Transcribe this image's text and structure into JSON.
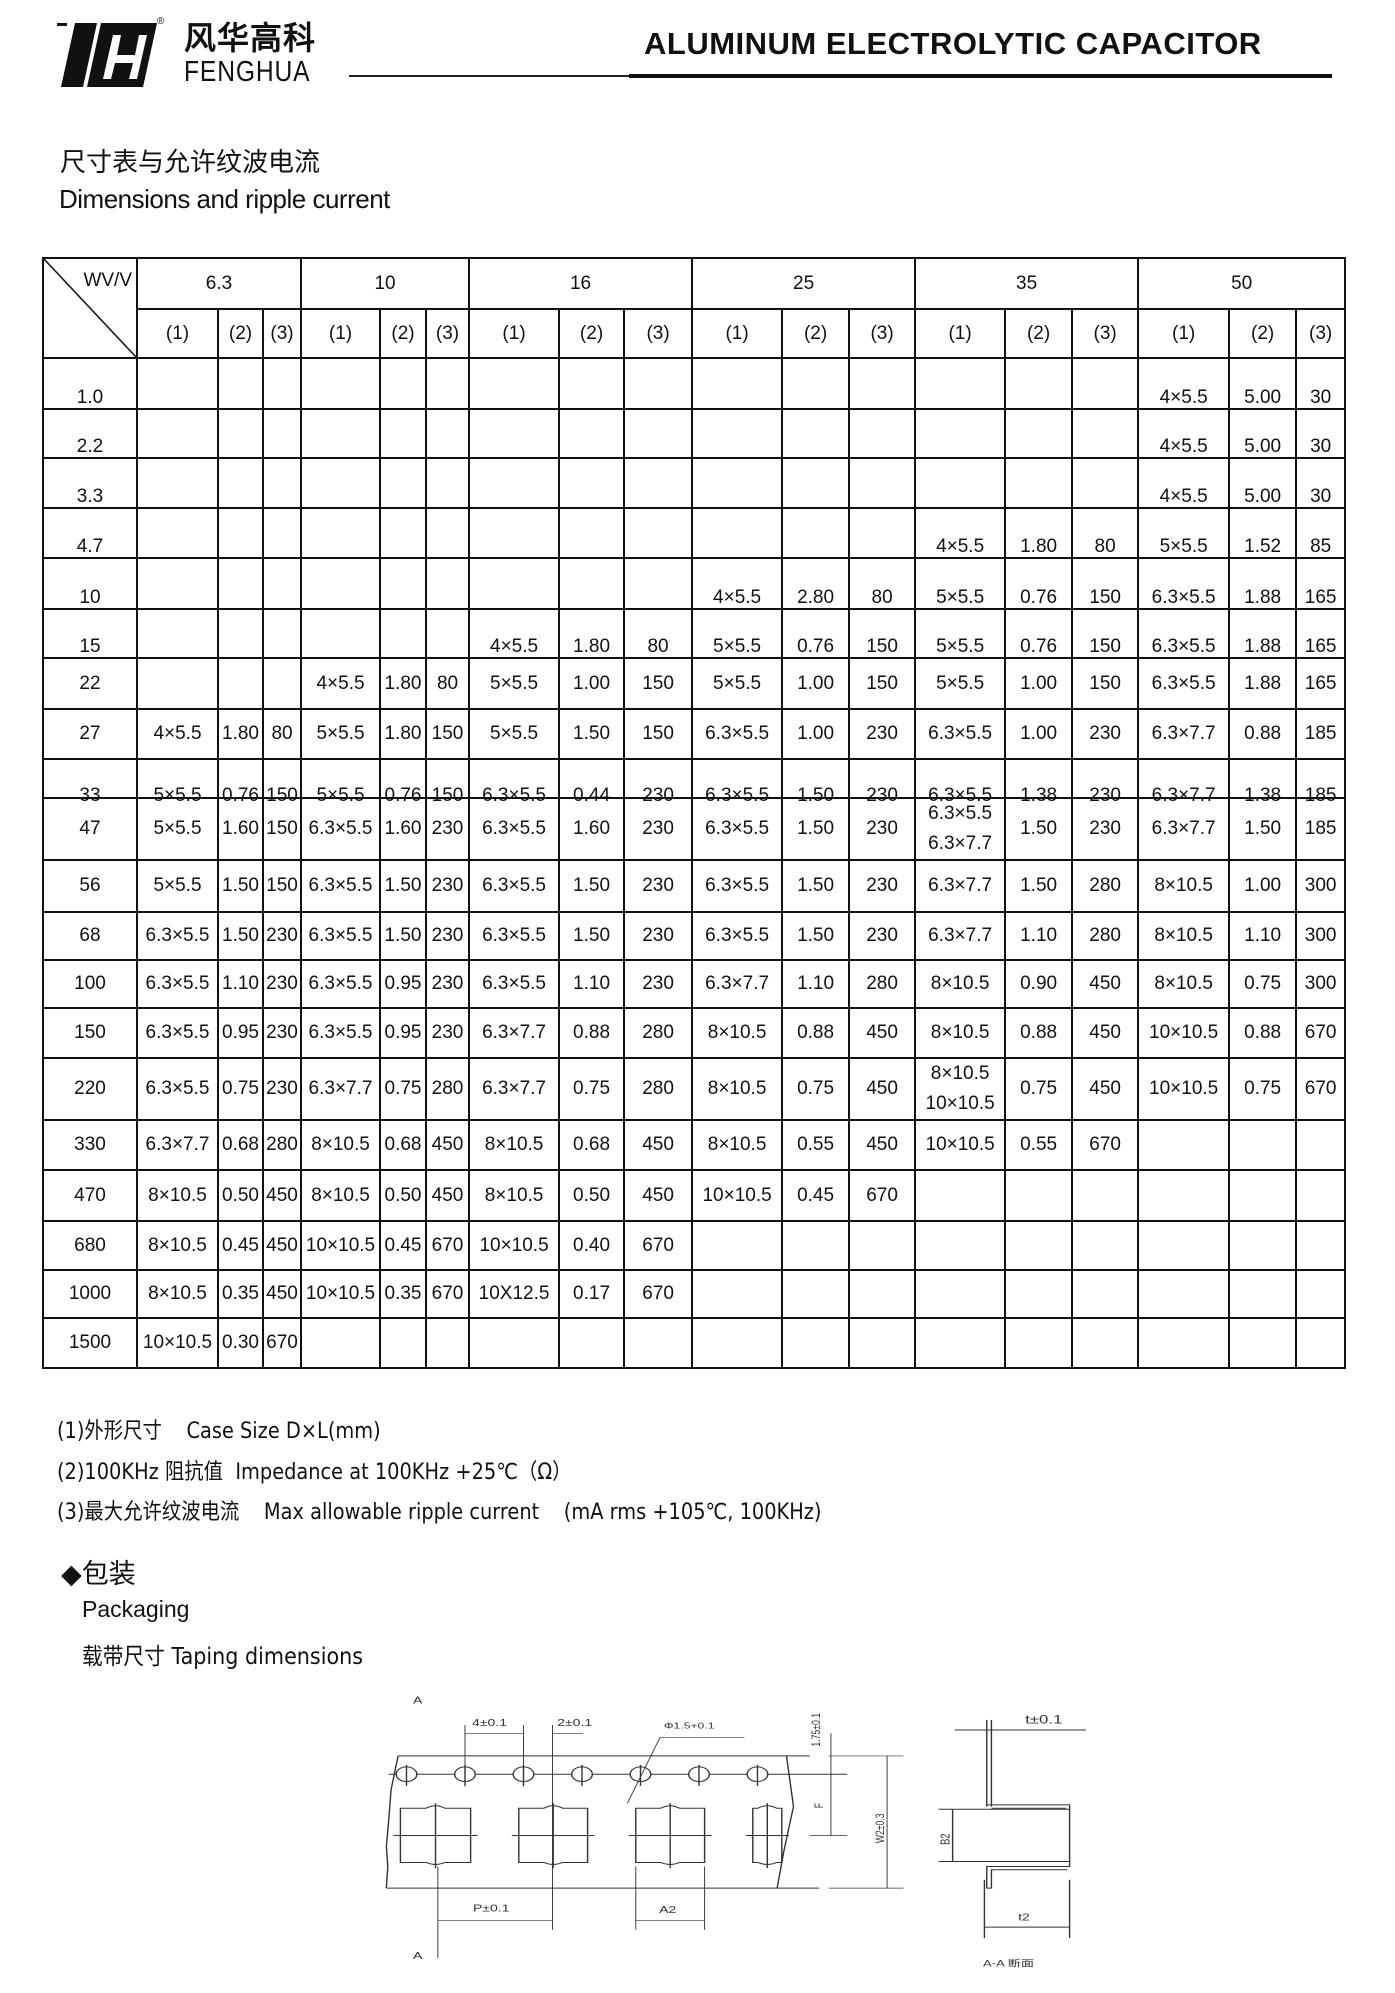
{
  "header": {
    "brand_cn": "风华高科",
    "brand_en": "FENGHUA",
    "registered_mark": "®",
    "title": "ALUMINUM ELECTROLYTIC CAPACITOR"
  },
  "section": {
    "title_cn": "尺寸表与允许纹波电流",
    "title_en": "Dimensions and ripple current"
  },
  "table": {
    "corner_label": "WV/V",
    "voltages": [
      "6.3",
      "10",
      "16",
      "25",
      "35",
      "50"
    ],
    "sub_headers": [
      "(1)",
      "(2)",
      "(3)"
    ],
    "rows": [
      {
        "cap": "1.0",
        "cells": [
          "",
          "",
          "",
          "",
          "",
          "",
          "",
          "",
          "",
          "",
          "",
          "",
          "",
          "",
          "",
          "4×5.5",
          "5.00",
          "30"
        ]
      },
      {
        "cap": "2.2",
        "cells": [
          "",
          "",
          "",
          "",
          "",
          "",
          "",
          "",
          "",
          "",
          "",
          "",
          "",
          "",
          "",
          "4×5.5",
          "5.00",
          "30"
        ]
      },
      {
        "cap": "3.3",
        "cells": [
          "",
          "",
          "",
          "",
          "",
          "",
          "",
          "",
          "",
          "",
          "",
          "",
          "",
          "",
          "",
          "4×5.5",
          "5.00",
          "30"
        ]
      },
      {
        "cap": "4.7",
        "cells": [
          "",
          "",
          "",
          "",
          "",
          "",
          "",
          "",
          "",
          "",
          "",
          "",
          "4×5.5",
          "1.80",
          "80",
          "5×5.5",
          "1.52",
          "85"
        ]
      },
      {
        "cap": "10",
        "cells": [
          "",
          "",
          "",
          "",
          "",
          "",
          "",
          "",
          "",
          "4×5.5",
          "2.80",
          "80",
          "5×5.5",
          "0.76",
          "150",
          "6.3×5.5",
          "1.88",
          "165"
        ]
      },
      {
        "cap": "15",
        "cells": [
          "",
          "",
          "",
          "",
          "",
          "",
          "4×5.5",
          "1.80",
          "80",
          "5×5.5",
          "0.76",
          "150",
          "5×5.5",
          "0.76",
          "150",
          "6.3×5.5",
          "1.88",
          "165"
        ]
      },
      {
        "cap": "22",
        "cells": [
          "",
          "",
          "",
          "4×5.5",
          "1.80",
          "80",
          "5×5.5",
          "1.00",
          "150",
          "5×5.5",
          "1.00",
          "150",
          "5×5.5",
          "1.00",
          "150",
          "6.3×5.5",
          "1.88",
          "165"
        ]
      },
      {
        "cap": "27",
        "cells": [
          "4×5.5",
          "1.80",
          "80",
          "5×5.5",
          "1.80",
          "150",
          "5×5.5",
          "1.50",
          "150",
          "6.3×5.5",
          "1.00",
          "230",
          "6.3×5.5",
          "1.00",
          "230",
          "6.3×7.7",
          "0.88",
          "185"
        ]
      },
      {
        "cap": "33",
        "cells": [
          "5×5.5",
          "0.76",
          "150",
          "5×5.5",
          "0.76",
          "150",
          "6.3×5.5",
          "0.44",
          "230",
          "6.3×5.5",
          "1.50",
          "230",
          "6.3×5.5",
          "1.38",
          "230",
          "6.3×7.7",
          "1.38",
          "185"
        ]
      },
      {
        "cap": "47",
        "cells": [
          "5×5.5",
          "1.60",
          "150",
          "6.3×5.5",
          "1.60",
          "230",
          "6.3×5.5",
          "1.60",
          "230",
          "6.3×5.5",
          "1.50",
          "230",
          "6.3×5.5\n6.3×7.7",
          "1.50",
          "230",
          "6.3×7.7",
          "1.50",
          "185"
        ]
      },
      {
        "cap": "56",
        "cells": [
          "5×5.5",
          "1.50",
          "150",
          "6.3×5.5",
          "1.50",
          "230",
          "6.3×5.5",
          "1.50",
          "230",
          "6.3×5.5",
          "1.50",
          "230",
          "6.3×7.7",
          "1.50",
          "280",
          "8×10.5",
          "1.00",
          "300"
        ]
      },
      {
        "cap": "68",
        "cells": [
          "6.3×5.5",
          "1.50",
          "230",
          "6.3×5.5",
          "1.50",
          "230",
          "6.3×5.5",
          "1.50",
          "230",
          "6.3×5.5",
          "1.50",
          "230",
          "6.3×7.7",
          "1.10",
          "280",
          "8×10.5",
          "1.10",
          "300"
        ]
      },
      {
        "cap": "100",
        "cells": [
          "6.3×5.5",
          "1.10",
          "230",
          "6.3×5.5",
          "0.95",
          "230",
          "6.3×5.5",
          "1.10",
          "230",
          "6.3×7.7",
          "1.10",
          "280",
          "8×10.5",
          "0.90",
          "450",
          "8×10.5",
          "0.75",
          "300"
        ]
      },
      {
        "cap": "150",
        "cells": [
          "6.3×5.5",
          "0.95",
          "230",
          "6.3×5.5",
          "0.95",
          "230",
          "6.3×7.7",
          "0.88",
          "280",
          "8×10.5",
          "0.88",
          "450",
          "8×10.5",
          "0.88",
          "450",
          "10×10.5",
          "0.88",
          "670"
        ]
      },
      {
        "cap": "220",
        "cells": [
          "6.3×5.5",
          "0.75",
          "230",
          "6.3×7.7",
          "0.75",
          "280",
          "6.3×7.7",
          "0.75",
          "280",
          "8×10.5",
          "0.75",
          "450",
          "8×10.5\n10×10.5",
          "0.75",
          "450",
          "10×10.5",
          "0.75",
          "670"
        ]
      },
      {
        "cap": "330",
        "cells": [
          "6.3×7.7",
          "0.68",
          "280",
          "8×10.5",
          "0.68",
          "450",
          "8×10.5",
          "0.68",
          "450",
          "8×10.5",
          "0.55",
          "450",
          "10×10.5",
          "0.55",
          "670",
          "",
          "",
          ""
        ]
      },
      {
        "cap": "470",
        "cells": [
          "8×10.5",
          "0.50",
          "450",
          "8×10.5",
          "0.50",
          "450",
          "8×10.5",
          "0.50",
          "450",
          "10×10.5",
          "0.45",
          "670",
          "",
          "",
          "",
          "",
          "",
          ""
        ]
      },
      {
        "cap": "680",
        "cells": [
          "8×10.5",
          "0.45",
          "450",
          "10×10.5",
          "0.45",
          "670",
          "10×10.5",
          "0.40",
          "670",
          "",
          "",
          "",
          "",
          "",
          "",
          "",
          "",
          ""
        ]
      },
      {
        "cap": "1000",
        "cells": [
          "8×10.5",
          "0.35",
          "450",
          "10×10.5",
          "0.35",
          "670",
          "10X12.5",
          "0.17",
          "670",
          "",
          "",
          "",
          "",
          "",
          "",
          "",
          "",
          ""
        ]
      },
      {
        "cap": "1500",
        "cells": [
          "10×10.5",
          "0.30",
          "670",
          "",
          "",
          "",
          "",
          "",
          "",
          "",
          "",
          "",
          "",
          "",
          "",
          "",
          "",
          ""
        ]
      }
    ]
  },
  "notes": [
    "(1)外形尺寸    Case Size D×L(mm)",
    "(2)100KHz 阻抗值  Impedance at 100KHz +25℃（Ω）",
    "(3)最大允许纹波电流    Max allowable ripple current    (mA rms +105℃, 100KHz)"
  ],
  "packaging": {
    "title": "◆包装",
    "title_en": "Packaging",
    "subtitle": "载带尺寸  Taping dimensions"
  },
  "diagram": {
    "section_mark_top": "A",
    "section_mark_bottom": "A",
    "hole_pitch": "4±0.1",
    "hole_to_pocket": "2±0.1",
    "hole_dia": "Φ1.5+0.1",
    "edge_to_hole": "1.75±0.1",
    "f_label": "F",
    "width": "W2±0.3",
    "pocket_pitch": "P±0.1",
    "pocket_width": "A2",
    "thickness": "t±0.1",
    "pocket_length": "B2",
    "depth": "t2",
    "section_caption": "A-A 断面"
  }
}
